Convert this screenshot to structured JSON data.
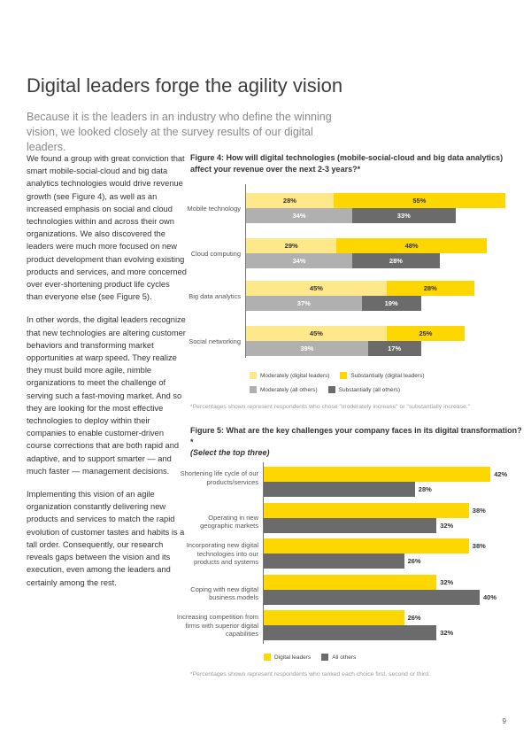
{
  "title": "Digital leaders forge the agility vision",
  "subtitle": "Because it is the leaders in an industry who define the winning vision, we looked closely at the survey results of our digital leaders.",
  "body": {
    "p1": "We found a group with great conviction that smart mobile-social-cloud and big data analytics technologies would drive revenue growth (see Figure 4), as well as an increased emphasis on social and cloud technologies within and across their own organizations. We also discovered the leaders were much more focused on new product development than evolving existing products and services, and more concerned over ever-shortening product life cycles than everyone else (see Figure 5).",
    "p2": "In other words, the digital leaders recognize that new technologies are altering customer behaviors and transforming market opportunities at warp speed. They realize they must build more agile, nimble organizations to meet the challenge of serving such a fast-moving market. And so they are looking for the most effective technologies to deploy within their companies to enable customer-driven course corrections that are both rapid and adaptive, and to support smarter — and much faster — management decisions.",
    "p3": "Implementing this vision of an agile organization constantly delivering new products and services to match the rapid evolution of customer tastes and habits is a tall order. Consequently, our research reveals gaps between the vision and its execution, even among the leaders and certainly among the rest."
  },
  "colors": {
    "leader_mod": "#ffe88a",
    "leader_sub": "#ffd700",
    "others_mod": "#b0b0b0",
    "others_sub": "#6b6b6b"
  },
  "chart_data": [
    {
      "type": "bar",
      "stacked": true,
      "orientation": "horizontal",
      "figure_label": "Figure 4:",
      "title": "How will digital technologies (mobile-social-cloud and big data analytics) affect your revenue over the next 2-3 years?*",
      "categories": [
        "Mobile technology",
        "Cloud computing",
        "Big data analytics",
        "Social networking"
      ],
      "series": [
        {
          "name": "Moderately (digital leaders)",
          "values": [
            28,
            29,
            45,
            45
          ]
        },
        {
          "name": "Substantially (digital leaders)",
          "values": [
            55,
            48,
            28,
            25
          ]
        },
        {
          "name": "Moderately (all others)",
          "values": [
            34,
            34,
            37,
            39
          ]
        },
        {
          "name": "Substantially (all others)",
          "values": [
            33,
            28,
            19,
            17
          ]
        }
      ],
      "legend": "bottom",
      "note": "*Percentages shown represent respondents who chose \"moderately increase\" or \"substantially increase.\""
    },
    {
      "type": "bar",
      "orientation": "horizontal",
      "figure_label": "Figure 5:",
      "title": "What are the key challenges your company faces in its digital transformation?*",
      "subtitle": "(Select the top three)",
      "categories": [
        "Shortening life cycle of our products/services",
        "Operating in new geographic markets",
        "Incorporating new digital technologies into our products and systems",
        "Coping with new digital business models",
        "Increasing competition from firms with superior digital capabilities"
      ],
      "series": [
        {
          "name": "Digital leaders",
          "values": [
            42,
            38,
            38,
            32,
            26
          ]
        },
        {
          "name": "All others",
          "values": [
            28,
            32,
            26,
            40,
            32
          ]
        }
      ],
      "legend": "bottom",
      "note": "*Percentages shown represent respondents who ranked each choice first, second or third."
    }
  ],
  "page_number": "9"
}
